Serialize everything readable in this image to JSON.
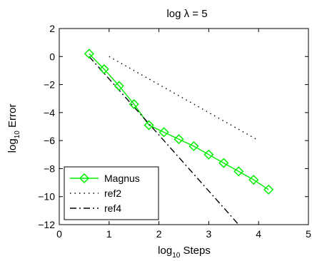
{
  "chart_data": {
    "type": "line",
    "title_prefix": "log ",
    "title_symbol": "λ",
    "title_suffix": " = 5",
    "xlabel_base": "log",
    "xlabel_sub": "10",
    "xlabel_rest": " Steps",
    "ylabel_base": "log",
    "ylabel_sub": "10",
    "ylabel_rest": " Error",
    "xlim": [
      0,
      5
    ],
    "ylim": [
      -12,
      2
    ],
    "xticks": [
      0,
      1,
      2,
      3,
      4,
      5
    ],
    "yticks": [
      2,
      0,
      -2,
      -4,
      -6,
      -8,
      -10,
      -12
    ],
    "ytick_labels": [
      "2",
      "0",
      "−2",
      "−4",
      "−6",
      "−8",
      "−10",
      "−12"
    ],
    "grid": false,
    "legend_position": "bottom-left",
    "series": [
      {
        "name": "Magnus",
        "color": "#00ee00",
        "style": "solid",
        "marker": "diamond",
        "x": [
          0.6,
          0.9,
          1.2,
          1.5,
          1.8,
          2.1,
          2.4,
          2.7,
          3.0,
          3.3,
          3.6,
          3.9,
          4.2
        ],
        "y": [
          0.2,
          -0.9,
          -2.1,
          -3.4,
          -4.9,
          -5.4,
          -5.9,
          -6.4,
          -7.0,
          -7.6,
          -8.2,
          -8.8,
          -9.5
        ]
      },
      {
        "name": "ref2",
        "color": "#000000",
        "style": "dotted",
        "marker": "none",
        "x": [
          1.0,
          4.0
        ],
        "y": [
          0.0,
          -6.0
        ]
      },
      {
        "name": "ref4",
        "color": "#000000",
        "style": "dashdot",
        "marker": "none",
        "x": [
          0.6,
          3.6
        ],
        "y": [
          0.0,
          -12.0
        ]
      }
    ]
  }
}
